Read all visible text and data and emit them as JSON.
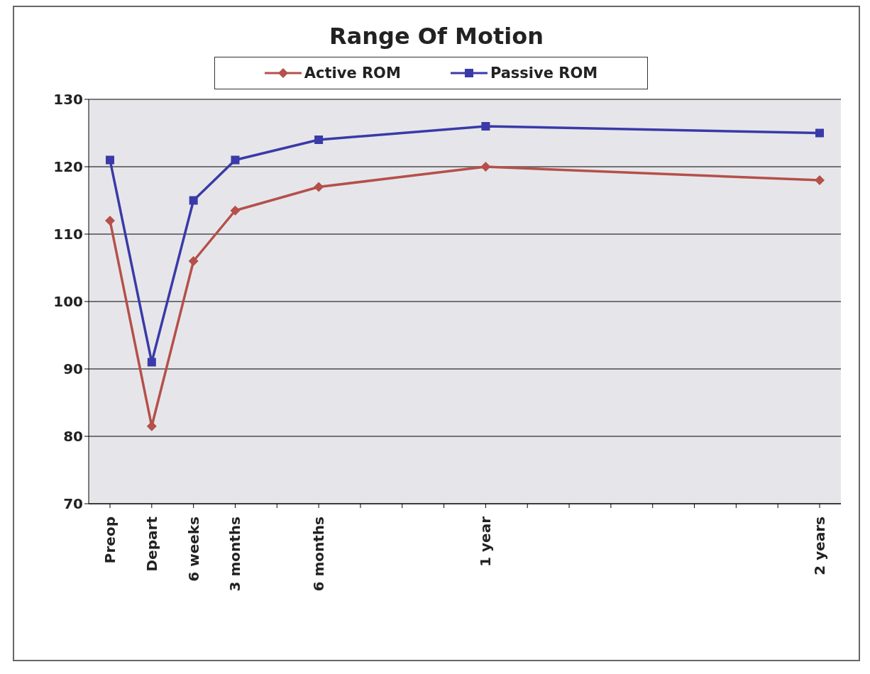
{
  "chart_data": {
    "type": "line",
    "title": "Range Of Motion",
    "categories": [
      "Preop",
      "Depart",
      "6 weeks",
      "3 months",
      null,
      "6 months",
      null,
      null,
      null,
      "1 year",
      null,
      null,
      null,
      null,
      null,
      null,
      null,
      "2 years"
    ],
    "series": [
      {
        "name": "Active ROM",
        "color": "#b5504a",
        "marker": "diamond",
        "values": [
          112,
          81.5,
          106,
          113.5,
          null,
          117,
          null,
          null,
          null,
          120,
          null,
          null,
          null,
          null,
          null,
          null,
          null,
          118
        ]
      },
      {
        "name": "Passive ROM",
        "color": "#3a3aa8",
        "marker": "square",
        "values": [
          121,
          91,
          115,
          121,
          null,
          124,
          null,
          null,
          null,
          126,
          null,
          null,
          null,
          null,
          null,
          null,
          null,
          125
        ]
      }
    ],
    "ylim": [
      70,
      130
    ],
    "yticks": [
      70,
      80,
      90,
      100,
      110,
      120,
      130
    ],
    "grid": "y",
    "legend": "top"
  }
}
